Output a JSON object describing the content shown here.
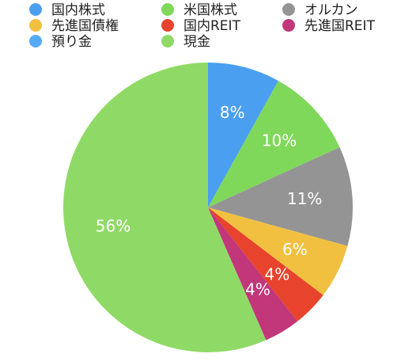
{
  "chart_data": {
    "type": "pie",
    "categories": [
      "国内株式",
      "米国株式",
      "オルカン",
      "先進国債権",
      "国内REIT",
      "先進国REIT",
      "預り金",
      "現金"
    ],
    "values": [
      8,
      10,
      11,
      6,
      4,
      4,
      0,
      56
    ],
    "value_labels": [
      "8%",
      "10%",
      "11%",
      "6%",
      "4%",
      "4%",
      null,
      "56%"
    ],
    "colors": [
      "#4a9ff0",
      "#7fd85a",
      "#949494",
      "#f2c040",
      "#e8432d",
      "#c2367a",
      "#55aaf5",
      "#8fda66"
    ],
    "legend": "top"
  }
}
